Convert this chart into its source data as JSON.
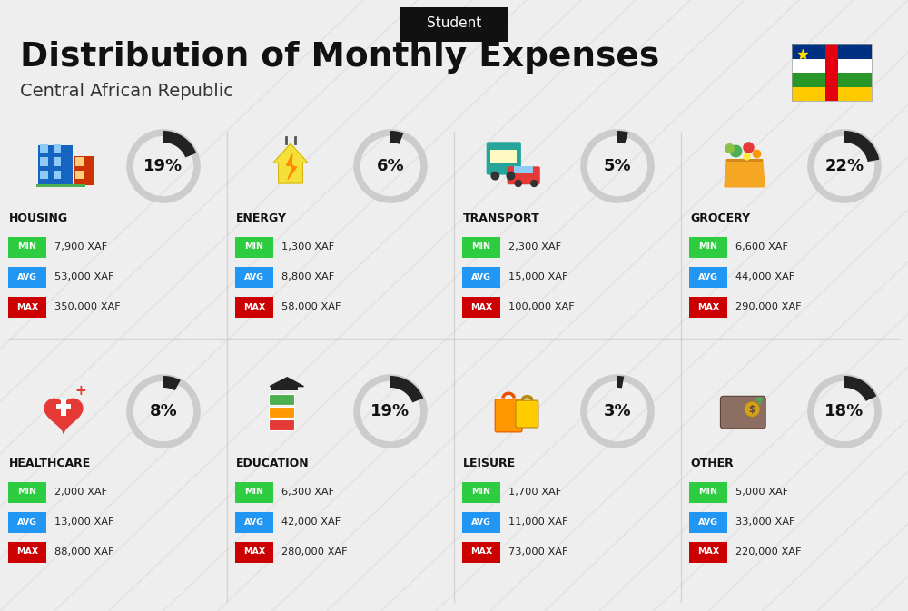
{
  "title": "Distribution of Monthly Expenses",
  "subtitle": "Central African Republic",
  "header_label": "Student",
  "background_color": "#eeeeee",
  "categories": [
    {
      "name": "HOUSING",
      "percent": 19,
      "min_val": "7,900 XAF",
      "avg_val": "53,000 XAF",
      "max_val": "350,000 XAF",
      "icon": "housing",
      "row": 0,
      "col": 0
    },
    {
      "name": "ENERGY",
      "percent": 6,
      "min_val": "1,300 XAF",
      "avg_val": "8,800 XAF",
      "max_val": "58,000 XAF",
      "icon": "energy",
      "row": 0,
      "col": 1
    },
    {
      "name": "TRANSPORT",
      "percent": 5,
      "min_val": "2,300 XAF",
      "avg_val": "15,000 XAF",
      "max_val": "100,000 XAF",
      "icon": "transport",
      "row": 0,
      "col": 2
    },
    {
      "name": "GROCERY",
      "percent": 22,
      "min_val": "6,600 XAF",
      "avg_val": "44,000 XAF",
      "max_val": "290,000 XAF",
      "icon": "grocery",
      "row": 0,
      "col": 3
    },
    {
      "name": "HEALTHCARE",
      "percent": 8,
      "min_val": "2,000 XAF",
      "avg_val": "13,000 XAF",
      "max_val": "88,000 XAF",
      "icon": "healthcare",
      "row": 1,
      "col": 0
    },
    {
      "name": "EDUCATION",
      "percent": 19,
      "min_val": "6,300 XAF",
      "avg_val": "42,000 XAF",
      "max_val": "280,000 XAF",
      "icon": "education",
      "row": 1,
      "col": 1
    },
    {
      "name": "LEISURE",
      "percent": 3,
      "min_val": "1,700 XAF",
      "avg_val": "11,000 XAF",
      "max_val": "73,000 XAF",
      "icon": "leisure",
      "row": 1,
      "col": 2
    },
    {
      "name": "OTHER",
      "percent": 18,
      "min_val": "5,000 XAF",
      "avg_val": "33,000 XAF",
      "max_val": "220,000 XAF",
      "icon": "other",
      "row": 1,
      "col": 3
    }
  ],
  "min_color": "#2ecc40",
  "avg_color": "#2196f3",
  "max_color": "#cc0000",
  "value_text_color": "#222222",
  "category_name_color": "#111111",
  "percent_color": "#111111",
  "title_color": "#111111",
  "subtitle_color": "#333333",
  "donut_filled_color": "#222222",
  "donut_empty_color": "#cccccc"
}
